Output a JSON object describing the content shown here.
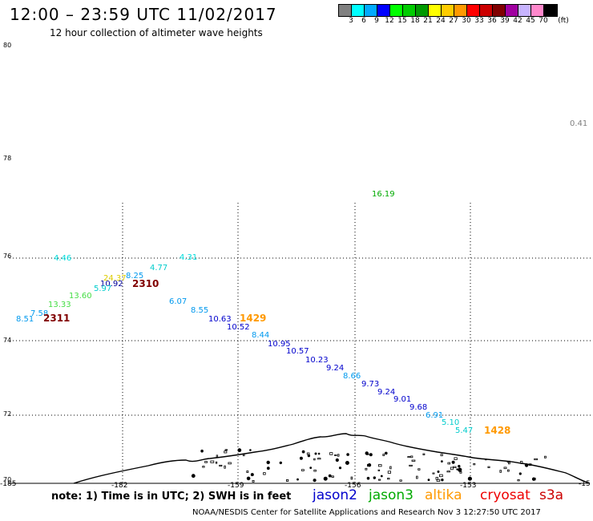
{
  "header": {
    "title": "12:00 – 23:59 UTC 11/02/2017",
    "subtitle": "12 hour collection of altimeter wave heights"
  },
  "legend": {
    "unit": "(ft)",
    "items": [
      {
        "label": "3",
        "color": "#808080"
      },
      {
        "label": "6",
        "color": "#00ffff"
      },
      {
        "label": "9",
        "color": "#00aaff"
      },
      {
        "label": "12",
        "color": "#0000ff"
      },
      {
        "label": "15",
        "color": "#00ff00"
      },
      {
        "label": "18",
        "color": "#00cc00"
      },
      {
        "label": "21",
        "color": "#009900"
      },
      {
        "label": "24",
        "color": "#ffff00"
      },
      {
        "label": "27",
        "color": "#ffcc00"
      },
      {
        "label": "30",
        "color": "#ff9900"
      },
      {
        "label": "33",
        "color": "#ff0000"
      },
      {
        "label": "36",
        "color": "#cc0000"
      },
      {
        "label": "39",
        "color": "#800000"
      },
      {
        "label": "42",
        "color": "#a000a0"
      },
      {
        "label": "45",
        "color": "#c8b4ff"
      },
      {
        "label": "70",
        "color": "#ff88cc"
      },
      {
        "label": "",
        "color": "#000000"
      }
    ]
  },
  "map": {
    "lat_labels": [
      "80",
      "78",
      "76",
      "74",
      "72",
      "70"
    ],
    "lon_labels": [
      "-185",
      "-182",
      "-159",
      "-156",
      "-153",
      "-15"
    ],
    "wave_heights": [
      {
        "text": "0.41",
        "color": "#808080"
      },
      {
        "text": "16.19",
        "color": "#00aa00"
      },
      {
        "text": "4.46",
        "color": "#00dddd"
      },
      {
        "text": "4.31",
        "color": "#00dddd"
      },
      {
        "text": "4.77",
        "color": "#00cccc"
      },
      {
        "text": "24.37",
        "color": "#ddcc00"
      },
      {
        "text": "8.25",
        "color": "#0099ee"
      },
      {
        "text": "10.92",
        "color": "#000099"
      },
      {
        "text": "5.97",
        "color": "#00cccc"
      },
      {
        "text": "13.60",
        "color": "#44dd44"
      },
      {
        "text": "13.33",
        "color": "#44dd44"
      },
      {
        "text": "7.58",
        "color": "#0099ee"
      },
      {
        "text": "8.51",
        "color": "#0099ee"
      },
      {
        "text": "6.07",
        "color": "#0099ee"
      },
      {
        "text": "8.55",
        "color": "#0099ee"
      },
      {
        "text": "10.63",
        "color": "#0000cc"
      },
      {
        "text": "10.52",
        "color": "#0000cc"
      },
      {
        "text": "8.44",
        "color": "#0099ee"
      },
      {
        "text": "10.95",
        "color": "#0000cc"
      },
      {
        "text": "10.57",
        "color": "#0000cc"
      },
      {
        "text": "10.23",
        "color": "#0000cc"
      },
      {
        "text": "9.24",
        "color": "#0000cc"
      },
      {
        "text": "8.66",
        "color": "#0099ee"
      },
      {
        "text": "9.73",
        "color": "#0000cc"
      },
      {
        "text": "9.24",
        "color": "#0000cc"
      },
      {
        "text": "9.01",
        "color": "#0000cc"
      },
      {
        "text": "9.68",
        "color": "#0000cc"
      },
      {
        "text": "6.91",
        "color": "#0099ee"
      },
      {
        "text": "5.10",
        "color": "#00cccc"
      },
      {
        "text": "5.47",
        "color": "#00cccc"
      }
    ],
    "pass_times": [
      {
        "text": "2310",
        "color": "#800000"
      },
      {
        "text": "2311",
        "color": "#800000"
      },
      {
        "text": "1429",
        "color": "#ff9900"
      },
      {
        "text": "1428",
        "color": "#ff9900"
      }
    ]
  },
  "footer": {
    "note": "note: 1) Time is in UTC; 2) SWH is in feet",
    "satellites": [
      {
        "name": "jason2",
        "color": "#0000cc"
      },
      {
        "name": "jason3",
        "color": "#00aa00"
      },
      {
        "name": "altika",
        "color": "#ff9900"
      },
      {
        "name": "cryosat",
        "color": "#ee0000"
      },
      {
        "name": "s3a",
        "color": "#cc0000"
      }
    ],
    "credit": "NOAA/NESDIS Center for Satellite Applications and Research  Nov  3 12:27:50 UTC 2017"
  }
}
